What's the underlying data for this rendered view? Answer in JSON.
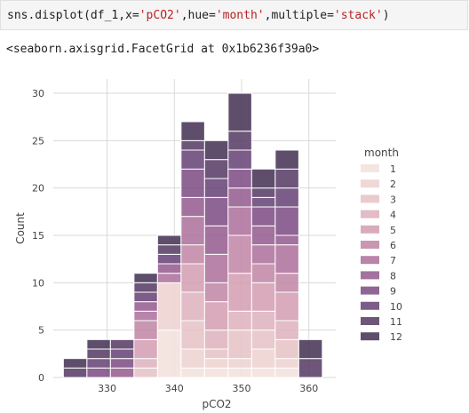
{
  "cell": {
    "code_prefix": "sns.displot(df_1,x=",
    "code_s1": "'pCO2'",
    "code_mid1": ",hue=",
    "code_s2": "'month'",
    "code_mid2": ",multiple=",
    "code_s3": "'stack'",
    "code_suffix": ")",
    "output": "<seaborn.axisgrid.FacetGrid at 0x1b6236f39a0>"
  },
  "colors": {
    "palette": [
      "#f3e0dc",
      "#ecd1cf",
      "#e5c1c4",
      "#ddb0bc",
      "#d29cb2",
      "#c085a5",
      "#ab6f9a",
      "#93598e",
      "#7b4a83",
      "#654073",
      "#533863",
      "#422f52"
    ]
  },
  "chart_data": {
    "type": "histogram-stacked",
    "xlabel": "pCO2",
    "ylabel": "Count",
    "xlim": [
      322,
      364
    ],
    "ylim": [
      0,
      31.5
    ],
    "xticks": [
      330,
      340,
      350,
      360
    ],
    "yticks": [
      0,
      5,
      10,
      15,
      20,
      25,
      30
    ],
    "bin_edges": [
      323.5,
      327.0,
      330.5,
      334.0,
      337.5,
      341.0,
      344.5,
      348.0,
      351.5,
      355.0,
      358.5,
      362.0
    ],
    "legend_title": "month",
    "legend_placement": "right",
    "series": [
      {
        "name": "1",
        "values": [
          0,
          0,
          0,
          0,
          5,
          1,
          1,
          1,
          1,
          1,
          0
        ]
      },
      {
        "name": "2",
        "values": [
          0,
          0,
          0,
          0,
          5,
          2,
          1,
          1,
          2,
          1,
          0
        ]
      },
      {
        "name": "3",
        "values": [
          0,
          0,
          0,
          1,
          0,
          3,
          1,
          3,
          2,
          2,
          0
        ]
      },
      {
        "name": "4",
        "values": [
          0,
          0,
          0,
          1,
          0,
          3,
          2,
          2,
          2,
          2,
          0
        ]
      },
      {
        "name": "5",
        "values": [
          0,
          0,
          0,
          2,
          0,
          3,
          3,
          4,
          3,
          3,
          0
        ]
      },
      {
        "name": "6",
        "values": [
          0,
          0,
          0,
          2,
          0,
          2,
          2,
          4,
          2,
          2,
          0
        ]
      },
      {
        "name": "7",
        "values": [
          0,
          0,
          0,
          1,
          1,
          3,
          3,
          3,
          2,
          3,
          0
        ]
      },
      {
        "name": "8",
        "values": [
          0,
          0,
          1,
          1,
          1,
          2,
          3,
          2,
          2,
          1,
          0
        ]
      },
      {
        "name": "9",
        "values": [
          0,
          1,
          1,
          0,
          0,
          3,
          3,
          2,
          2,
          3,
          0
        ]
      },
      {
        "name": "10",
        "values": [
          0,
          1,
          1,
          1,
          1,
          2,
          2,
          2,
          1,
          2,
          0
        ]
      },
      {
        "name": "11",
        "values": [
          1,
          1,
          1,
          1,
          1,
          1,
          2,
          2,
          1,
          2,
          2
        ]
      },
      {
        "name": "12",
        "values": [
          1,
          1,
          0,
          1,
          1,
          2,
          2,
          4,
          2,
          2,
          2
        ]
      }
    ]
  }
}
